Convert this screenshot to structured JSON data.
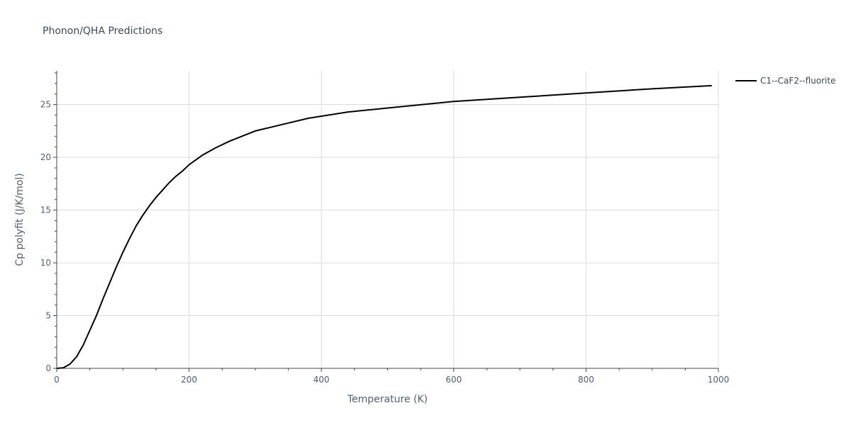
{
  "chart_data": {
    "type": "line",
    "title": "Phonon/QHA Predictions",
    "xlabel": "Temperature (K)",
    "ylabel": "Cp polyfit (J/K/mol)",
    "xlim": [
      0,
      1000
    ],
    "ylim": [
      0,
      28.2
    ],
    "xticks": [
      0,
      200,
      400,
      600,
      800,
      1000
    ],
    "yticks": [
      0,
      5,
      10,
      15,
      20,
      25
    ],
    "grid": true,
    "legend_position": "top-right",
    "series": [
      {
        "name": "C1--CaF2--fluorite",
        "color": "#000000",
        "x": [
          0,
          10,
          20,
          30,
          40,
          50,
          60,
          70,
          80,
          90,
          100,
          110,
          120,
          130,
          140,
          150,
          160,
          170,
          180,
          190,
          200,
          220,
          240,
          260,
          280,
          300,
          340,
          380,
          440,
          520,
          600,
          700,
          800,
          900,
          990
        ],
        "y": [
          0,
          0.05,
          0.4,
          1.1,
          2.2,
          3.6,
          5.0,
          6.6,
          8.1,
          9.6,
          11.0,
          12.3,
          13.5,
          14.5,
          15.4,
          16.2,
          16.9,
          17.6,
          18.2,
          18.7,
          19.3,
          20.2,
          20.9,
          21.5,
          22.0,
          22.5,
          23.1,
          23.7,
          24.3,
          24.8,
          25.3,
          25.7,
          26.1,
          26.5,
          26.8
        ]
      }
    ]
  }
}
